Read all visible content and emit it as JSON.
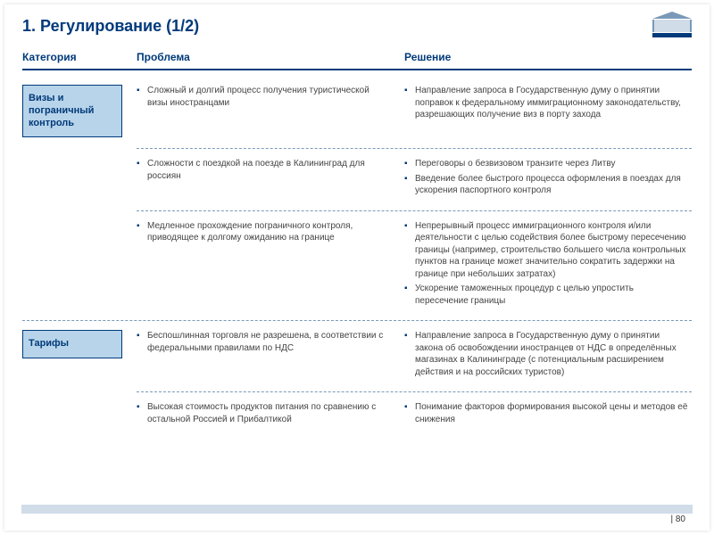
{
  "colors": {
    "title": "#003a7a",
    "header": "#003a7a",
    "bullet": "#003a7a",
    "catbox_bg": "#b8d4ea",
    "catbox_border": "#003a7a",
    "catbox_text": "#003a7a",
    "footer_bar": "#d0dce8",
    "dash": "#7a99b8"
  },
  "title": "1. Регулирование (1/2)",
  "headers": {
    "category": "Категория",
    "problem": "Проблема",
    "solution": "Решение"
  },
  "sections": [
    {
      "category": "Визы и пограничный контроль",
      "rows": [
        {
          "problems": [
            "Сложный и долгий процесс получения туристической визы иностранцами"
          ],
          "solutions": [
            "Направление запроса в Государственную думу о принятии поправок к федеральному иммиграционному законодательству, разрешающих получение виз в порту захода"
          ]
        },
        {
          "problems": [
            "Сложности с поездкой на поезде в Калининград для россиян"
          ],
          "solutions": [
            "Переговоры о безвизовом транзите через Литву",
            "Введение более быстрого процесса оформления в поездах для ускорения паспортного контроля"
          ]
        },
        {
          "problems": [
            "Медленное прохождение пограничного контроля, приводящее к долгому ожиданию на границе"
          ],
          "solutions": [
            "Непрерывный процесс иммиграционного контроля и/или деятельности с целью содействия более быстрому пересечению границы (например, строительство большего числа контрольных пунктов на границе может значительно сократить задержки на границе при небольших затратах)",
            "Ускорение таможенных процедур с целью упростить пересечение границы"
          ]
        }
      ]
    },
    {
      "category": "Тарифы",
      "rows": [
        {
          "problems": [
            "Беспошлинная торговля не разрешена, в соответствии с федеральными правилами по НДС"
          ],
          "solutions": [
            "Направление запроса в Государственную думу о принятии закона об освобождении иностранцев от НДС в определённых магазинах в Калининграде (с потенциальным расширением действия и на российских туристов)"
          ]
        },
        {
          "problems": [
            "Высокая стоимость продуктов питания по сравнению с остальной Россией и Прибалтикой"
          ],
          "solutions": [
            "Понимание факторов формирования высокой цены и методов её снижения"
          ]
        }
      ]
    }
  ],
  "page": {
    "sep": "|",
    "num": "80"
  }
}
